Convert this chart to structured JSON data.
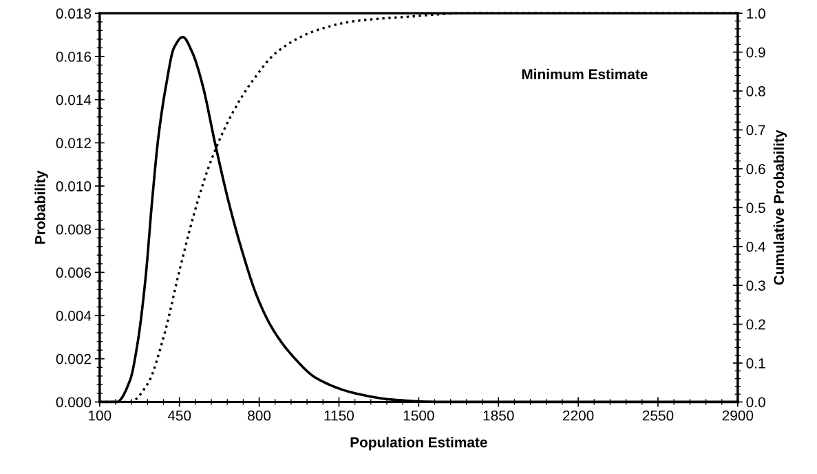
{
  "chart_data": {
    "type": "line",
    "xlabel": "Population Estimate",
    "ylabel": "Probability",
    "y2label": "Cumulative Probability",
    "annotations": [
      "Minimum Estimate"
    ],
    "series": [
      {
        "color": "#000000",
        "line_style": "solid",
        "x": [
          100,
          175,
          233,
          266,
          301,
          330,
          358,
          392,
          426,
          465,
          506,
          551,
          608,
          665,
          722,
          790,
          858,
          949,
          1051,
          1222,
          1393,
          1600,
          1850,
          2900
        ],
        "values": [
          0,
          0,
          0.001,
          0.0027,
          0.0057,
          0.0093,
          0.0123,
          0.0147,
          0.0164,
          0.0169,
          0.0162,
          0.0147,
          0.0119,
          0.0093,
          0.0071,
          0.0049,
          0.0034,
          0.0021,
          0.0011,
          0.0004,
          0.0001,
          0,
          0,
          0
        ]
      },
      {
        "color": "#000000",
        "line_style": "dotted",
        "axis": "y2",
        "x": [
          100,
          233,
          312,
          381,
          449,
          517,
          585,
          676,
          767,
          881,
          1051,
          1222,
          1450,
          1700,
          2900
        ],
        "values": [
          0,
          0,
          0.048,
          0.168,
          0.335,
          0.49,
          0.615,
          0.736,
          0.823,
          0.902,
          0.956,
          0.98,
          0.991,
          1.0,
          1.0
        ]
      }
    ],
    "xlim": [
      100,
      2900
    ],
    "xticks": [
      100,
      450,
      800,
      1150,
      1500,
      1850,
      2200,
      2550,
      2900
    ],
    "ylim": [
      0,
      0.018
    ],
    "yticks": [
      {
        "value": 0,
        "label": "0.000"
      },
      {
        "value": 0.002,
        "label": "0.002"
      },
      {
        "value": 0.004,
        "label": "0.004"
      },
      {
        "value": 0.006,
        "label": "0.006"
      },
      {
        "value": 0.008,
        "label": "0.008"
      },
      {
        "value": 0.01,
        "label": "0.010"
      },
      {
        "value": 0.012,
        "label": "0.012"
      },
      {
        "value": 0.014,
        "label": "0.014"
      },
      {
        "value": 0.016,
        "label": "0.016"
      },
      {
        "value": 0.018,
        "label": "0.018"
      }
    ],
    "y2lim": [
      0,
      1
    ],
    "y2ticks": [
      {
        "value": 0,
        "label": "0.0"
      },
      0.1,
      0.2,
      0.3,
      0.4,
      0.5,
      0.6,
      0.7,
      0.8,
      0.9,
      {
        "value": 1,
        "label": "1.0"
      }
    ],
    "grid": false,
    "marker": "none"
  }
}
